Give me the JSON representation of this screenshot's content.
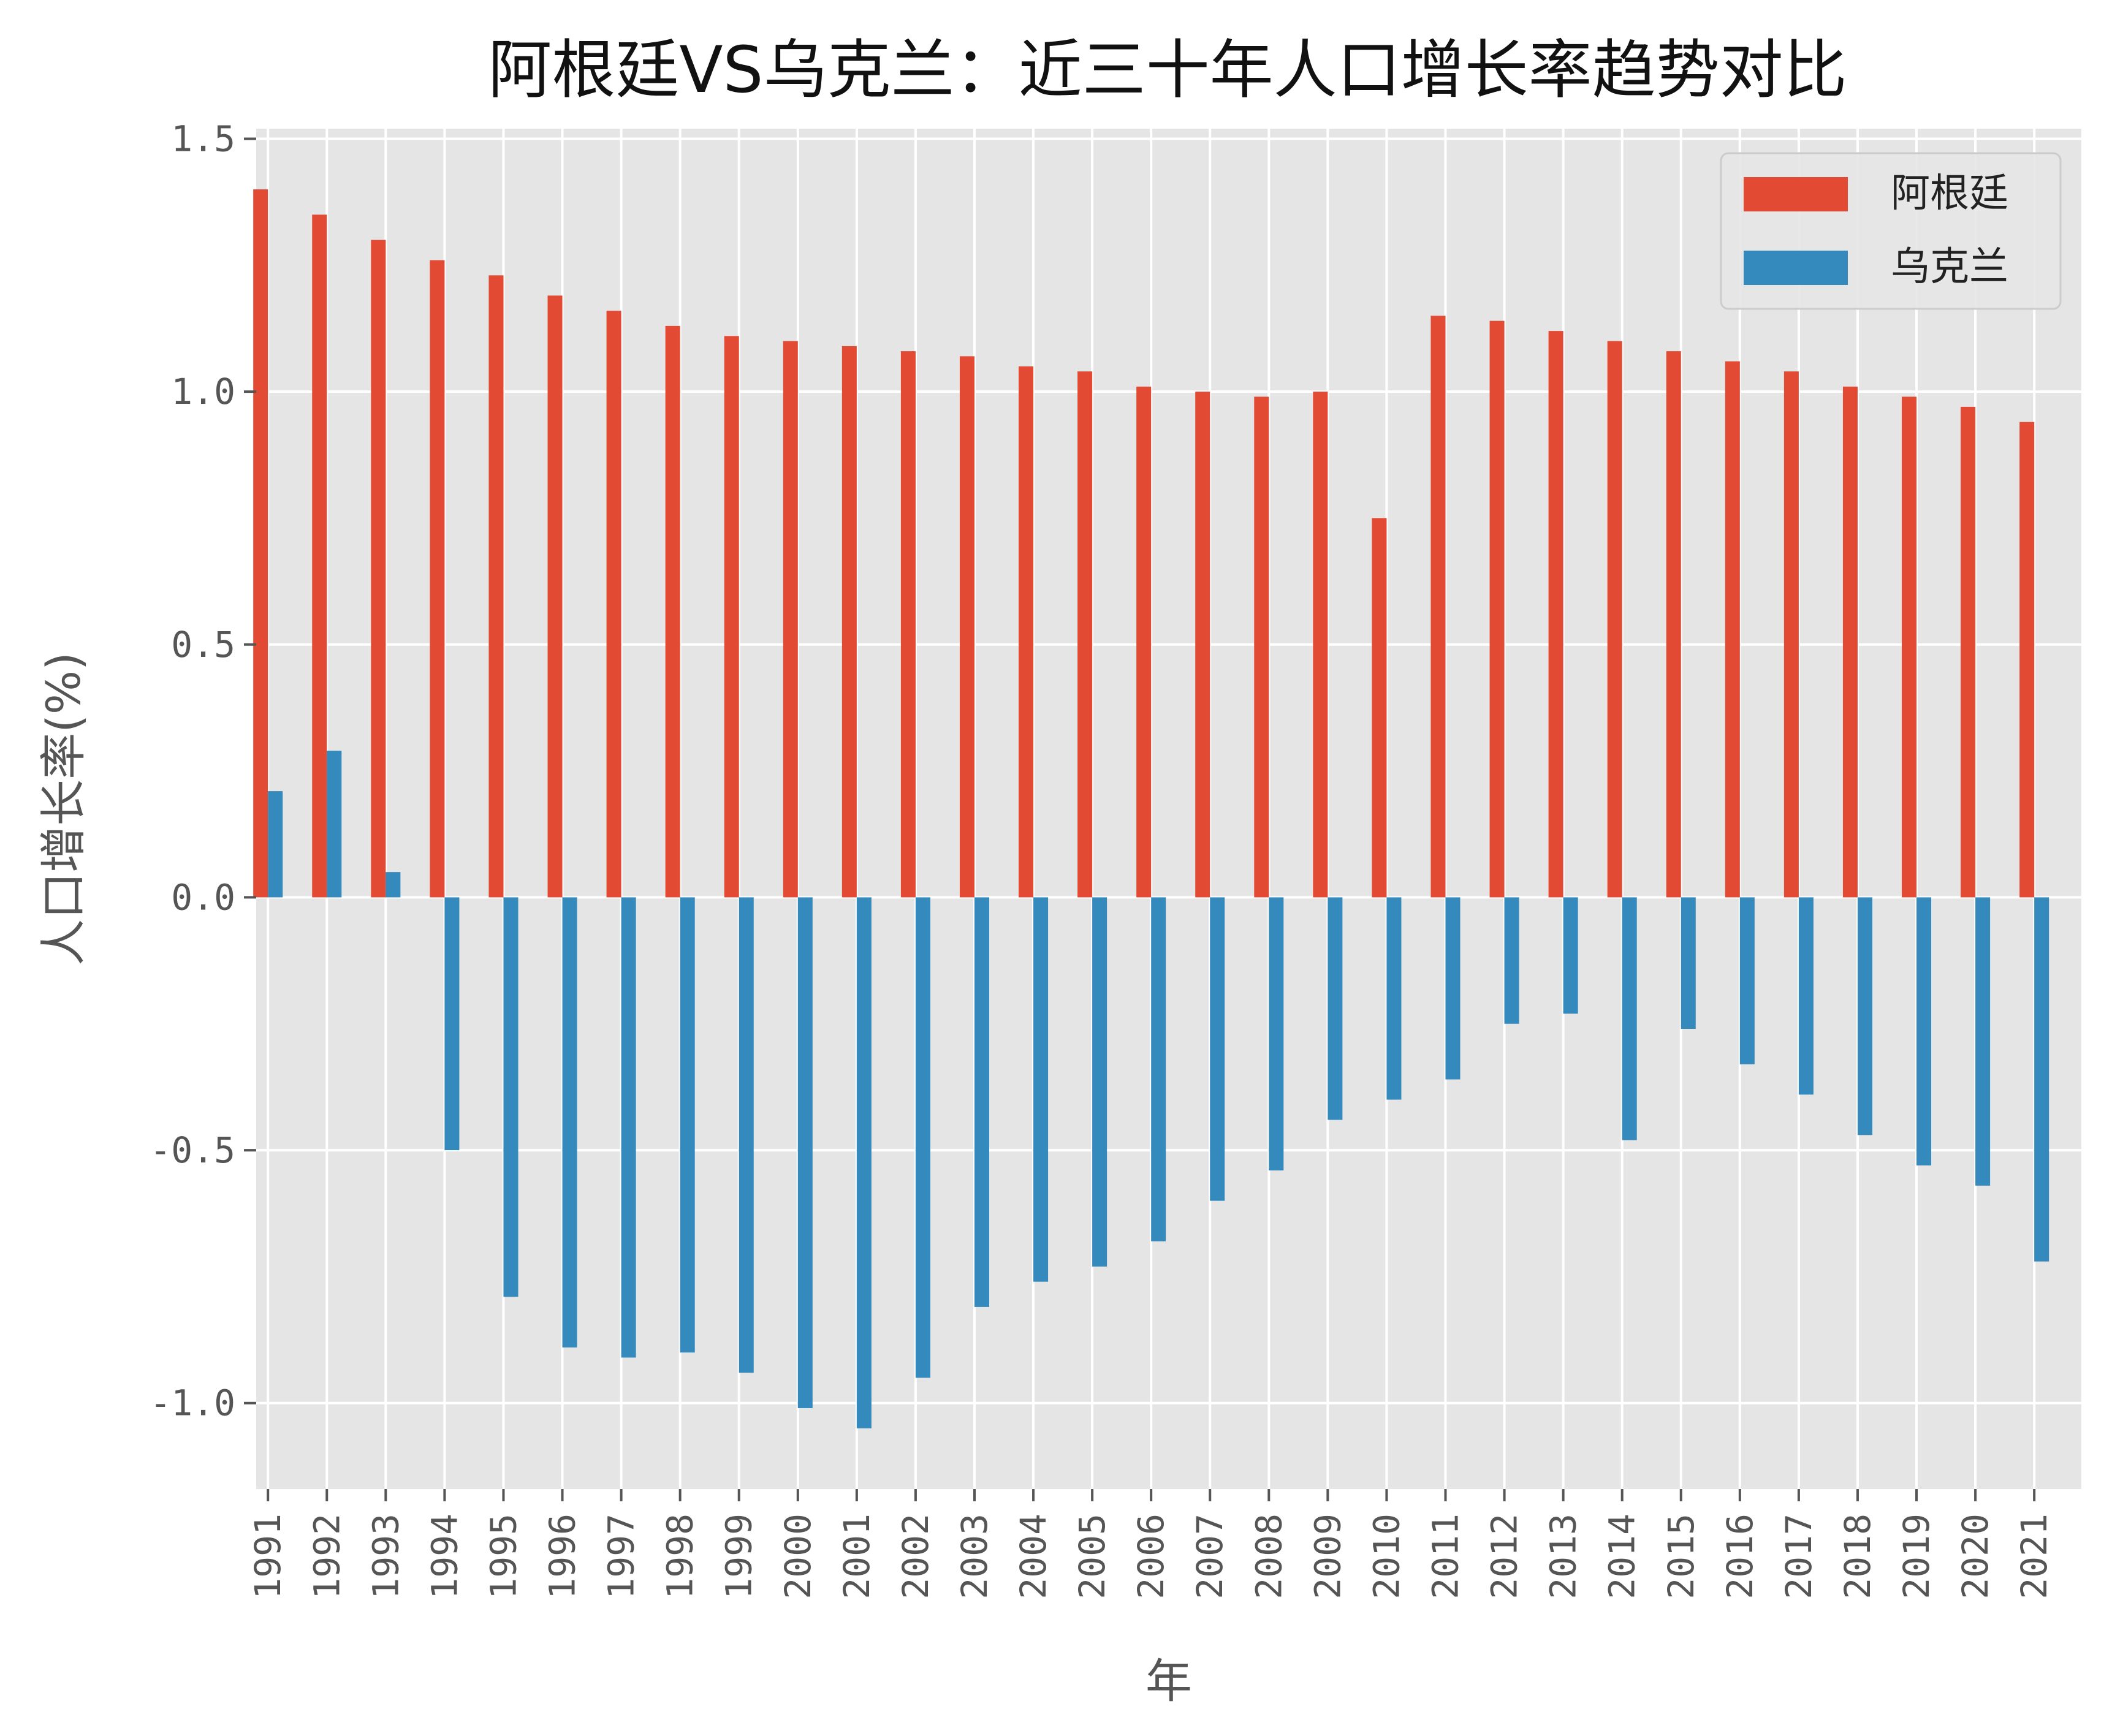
{
  "chart_data": {
    "type": "bar",
    "title": "阿根廷VS乌克兰：近三十年人口增长率趋势对比",
    "xlabel": "年",
    "ylabel": "人口增长率(%)",
    "ylim": [
      -1.17,
      1.52
    ],
    "yticks": [
      -1.0,
      -0.5,
      0.0,
      0.5,
      1.0,
      1.5
    ],
    "ytick_labels": [
      "-1.0",
      "-0.5",
      "0.0",
      "0.5",
      "1.0",
      "1.5"
    ],
    "grid": true,
    "legend": "top-right",
    "categories": [
      "1991",
      "1992",
      "1993",
      "1994",
      "1995",
      "1996",
      "1997",
      "1998",
      "1999",
      "2000",
      "2001",
      "2002",
      "2003",
      "2004",
      "2005",
      "2006",
      "2007",
      "2008",
      "2009",
      "2010",
      "2011",
      "2012",
      "2013",
      "2014",
      "2015",
      "2016",
      "2017",
      "2018",
      "2019",
      "2020",
      "2021"
    ],
    "series": [
      {
        "name": "阿根廷",
        "color": "#e24a33",
        "values": [
          1.4,
          1.35,
          1.3,
          1.26,
          1.23,
          1.19,
          1.16,
          1.13,
          1.11,
          1.1,
          1.09,
          1.08,
          1.07,
          1.05,
          1.04,
          1.01,
          1.0,
          0.99,
          1.0,
          0.75,
          1.15,
          1.14,
          1.12,
          1.1,
          1.08,
          1.06,
          1.04,
          1.01,
          0.99,
          0.97,
          0.94
        ]
      },
      {
        "name": "乌克兰",
        "color": "#348abd",
        "values": [
          0.21,
          0.29,
          0.05,
          -0.5,
          -0.79,
          -0.89,
          -0.91,
          -0.9,
          -0.94,
          -1.01,
          -1.05,
          -0.95,
          -0.81,
          -0.76,
          -0.73,
          -0.68,
          -0.6,
          -0.54,
          -0.44,
          -0.4,
          -0.36,
          -0.25,
          -0.23,
          -0.48,
          -0.26,
          -0.33,
          -0.39,
          -0.47,
          -0.53,
          -0.57,
          -0.72
        ]
      }
    ]
  }
}
